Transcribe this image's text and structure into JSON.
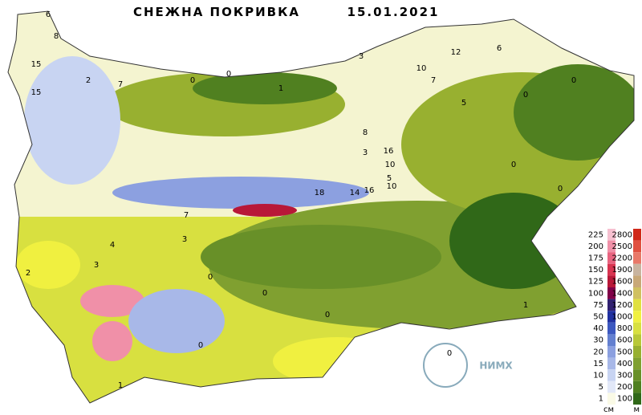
{
  "header": {
    "title": "СНЕЖНА ПОКРИВКА",
    "date": "15.01.2021"
  },
  "legend": {
    "snow": {
      "unit": "см",
      "items": [
        {
          "value": 225,
          "color": "#f6c0d0"
        },
        {
          "value": 200,
          "color": "#f090a8"
        },
        {
          "value": 175,
          "color": "#e86480"
        },
        {
          "value": 150,
          "color": "#d83450"
        },
        {
          "value": 125,
          "color": "#b81838"
        },
        {
          "value": 100,
          "color": "#800048"
        },
        {
          "value": 75,
          "color": "#302070"
        },
        {
          "value": 50,
          "color": "#2030a0"
        },
        {
          "value": 40,
          "color": "#3c58c0"
        },
        {
          "value": 30,
          "color": "#6480d0"
        },
        {
          "value": 20,
          "color": "#8ca0e0"
        },
        {
          "value": 15,
          "color": "#a8b8e8"
        },
        {
          "value": 10,
          "color": "#c8d4f2"
        },
        {
          "value": 5,
          "color": "#e2e8f8"
        },
        {
          "value": 1,
          "color": "#fafae6"
        }
      ]
    },
    "elevation": {
      "unit": "м",
      "items": [
        {
          "value": 2800,
          "color": "#d02818"
        },
        {
          "value": 2500,
          "color": "#e05040"
        },
        {
          "value": 2200,
          "color": "#e87868"
        },
        {
          "value": 1900,
          "color": "#c8b4a0"
        },
        {
          "value": 1600,
          "color": "#c8a878"
        },
        {
          "value": 1400,
          "color": "#d0c060"
        },
        {
          "value": 1200,
          "color": "#e0e040"
        },
        {
          "value": 1000,
          "color": "#f0f040"
        },
        {
          "value": 800,
          "color": "#d8e040"
        },
        {
          "value": 600,
          "color": "#b8c838"
        },
        {
          "value": 500,
          "color": "#98b030"
        },
        {
          "value": 400,
          "color": "#80a030"
        },
        {
          "value": 300,
          "color": "#689028"
        },
        {
          "value": 200,
          "color": "#508020"
        },
        {
          "value": 100,
          "color": "#306818"
        }
      ]
    }
  },
  "map": {
    "labels": [
      "6",
      "8",
      "15",
      "15",
      "2",
      "7",
      "0",
      "0",
      "1",
      "3",
      "12",
      "10",
      "6",
      "7",
      "5",
      "0",
      "0",
      "3",
      "16",
      "10",
      "5",
      "18",
      "14",
      "16",
      "10",
      "7",
      "8",
      "3",
      "0",
      "1",
      "3",
      "0",
      "0",
      "0",
      "0",
      "2",
      "4",
      "0",
      "1",
      "0"
    ]
  },
  "logo": {
    "text": "НИМХ"
  }
}
